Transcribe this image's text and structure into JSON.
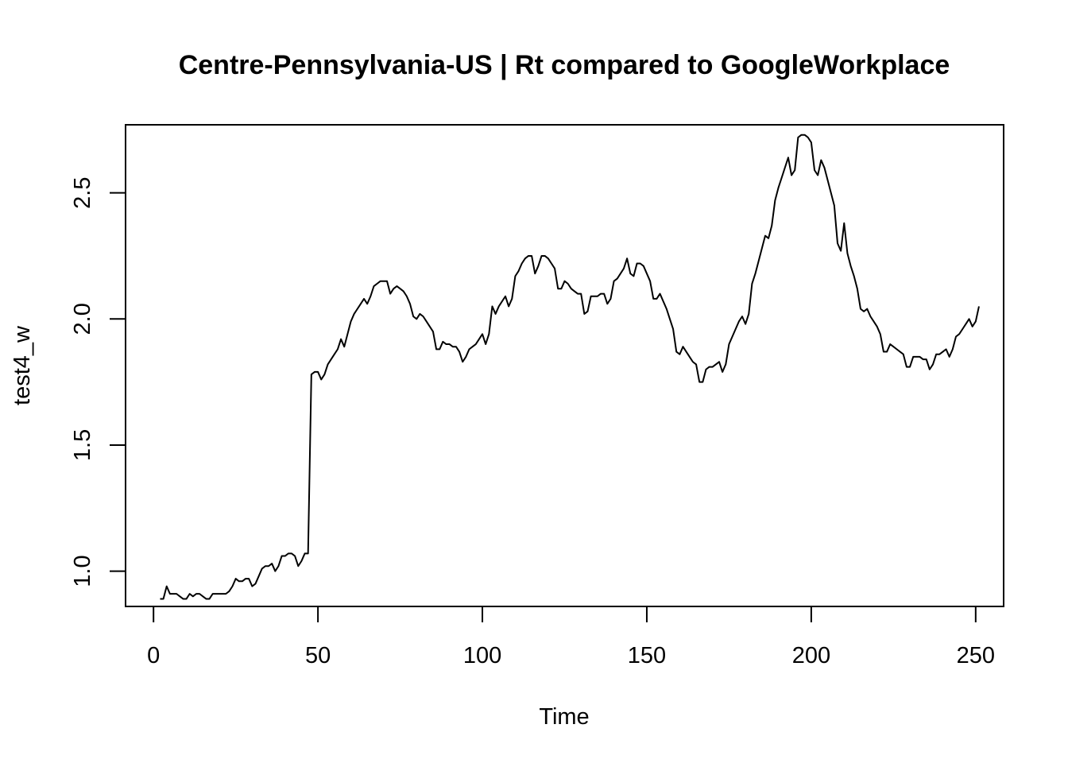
{
  "chart_data": {
    "type": "line",
    "title": "Centre-Pennsylvania-US | Rt compared to GoogleWorkplace",
    "xlabel": "Time",
    "ylabel": "test4_w",
    "xlim": [
      -8.5,
      258.5
    ],
    "ylim": [
      0.86,
      2.77
    ],
    "x_ticks": [
      0,
      50,
      100,
      150,
      200,
      250
    ],
    "x_tick_labels": [
      "0",
      "50",
      "100",
      "150",
      "200",
      "250"
    ],
    "y_ticks": [
      1.0,
      1.5,
      2.0,
      2.5
    ],
    "y_tick_labels": [
      "1.0",
      "1.5",
      "2.0",
      "2.5"
    ],
    "grid": false,
    "legend": "none",
    "line_color": "#000000",
    "series": [
      {
        "x_start": 2,
        "x_step": 1,
        "values": [
          0.89,
          0.89,
          0.94,
          0.91,
          0.91,
          0.91,
          0.9,
          0.89,
          0.89,
          0.91,
          0.9,
          0.91,
          0.91,
          0.9,
          0.89,
          0.89,
          0.91,
          0.91,
          0.91,
          0.91,
          0.91,
          0.92,
          0.94,
          0.97,
          0.96,
          0.96,
          0.97,
          0.97,
          0.94,
          0.95,
          0.98,
          1.01,
          1.02,
          1.02,
          1.03,
          1.0,
          1.02,
          1.06,
          1.06,
          1.07,
          1.07,
          1.06,
          1.02,
          1.04,
          1.07,
          1.07,
          1.78,
          1.79,
          1.79,
          1.76,
          1.78,
          1.82,
          1.84,
          1.86,
          1.88,
          1.92,
          1.89,
          1.94,
          1.99,
          2.02,
          2.04,
          2.06,
          2.08,
          2.06,
          2.09,
          2.13,
          2.14,
          2.15,
          2.15,
          2.15,
          2.1,
          2.12,
          2.13,
          2.12,
          2.11,
          2.09,
          2.06,
          2.01,
          2.0,
          2.02,
          2.01,
          1.99,
          1.97,
          1.95,
          1.88,
          1.88,
          1.91,
          1.9,
          1.9,
          1.89,
          1.89,
          1.87,
          1.83,
          1.85,
          1.88,
          1.89,
          1.9,
          1.92,
          1.94,
          1.9,
          1.94,
          2.05,
          2.02,
          2.05,
          2.07,
          2.09,
          2.05,
          2.08,
          2.17,
          2.19,
          2.22,
          2.24,
          2.25,
          2.25,
          2.18,
          2.21,
          2.25,
          2.25,
          2.24,
          2.22,
          2.2,
          2.12,
          2.12,
          2.15,
          2.14,
          2.12,
          2.11,
          2.1,
          2.1,
          2.02,
          2.03,
          2.09,
          2.09,
          2.09,
          2.1,
          2.1,
          2.06,
          2.08,
          2.15,
          2.16,
          2.18,
          2.2,
          2.24,
          2.18,
          2.17,
          2.22,
          2.22,
          2.21,
          2.18,
          2.15,
          2.08,
          2.08,
          2.1,
          2.07,
          2.04,
          2.0,
          1.96,
          1.87,
          1.86,
          1.89,
          1.87,
          1.85,
          1.83,
          1.82,
          1.75,
          1.75,
          1.8,
          1.81,
          1.81,
          1.82,
          1.83,
          1.79,
          1.82,
          1.9,
          1.93,
          1.96,
          1.99,
          2.01,
          1.98,
          2.02,
          2.14,
          2.18,
          2.23,
          2.28,
          2.33,
          2.32,
          2.37,
          2.47,
          2.52,
          2.56,
          2.6,
          2.64,
          2.57,
          2.59,
          2.72,
          2.73,
          2.73,
          2.72,
          2.7,
          2.59,
          2.57,
          2.63,
          2.6,
          2.55,
          2.5,
          2.45,
          2.3,
          2.27,
          2.38,
          2.26,
          2.21,
          2.17,
          2.12,
          2.04,
          2.03,
          2.04,
          2.01,
          1.99,
          1.97,
          1.94,
          1.87,
          1.87,
          1.9,
          1.89,
          1.88,
          1.87,
          1.86,
          1.81,
          1.81,
          1.85,
          1.85,
          1.85,
          1.84,
          1.84,
          1.8,
          1.82,
          1.86,
          1.86,
          1.87,
          1.88,
          1.85,
          1.88,
          1.93,
          1.94,
          1.96,
          1.98,
          2.0,
          1.97,
          1.99,
          2.05
        ]
      }
    ]
  }
}
